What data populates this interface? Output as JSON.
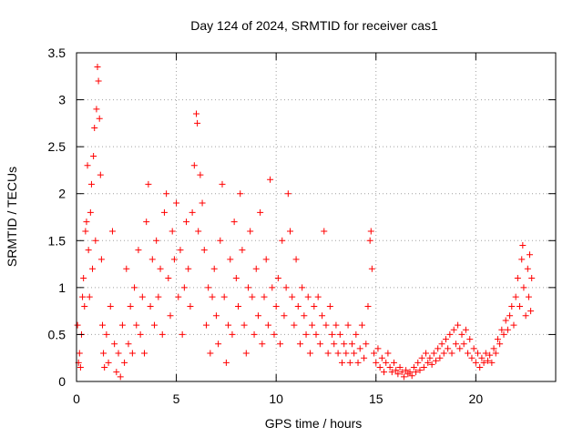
{
  "chart_data": {
    "type": "scatter",
    "title": "Day 124 of 2024, SRMTID for receiver cas1",
    "xlabel": "GPS time / hours",
    "ylabel": "SRMTID / TECUs",
    "xlim": [
      0,
      24
    ],
    "ylim": [
      0,
      3.5
    ],
    "xticks": [
      0,
      5,
      10,
      15,
      20
    ],
    "yticks": [
      0,
      0.5,
      1,
      1.5,
      2,
      2.5,
      3,
      3.5
    ],
    "xtick_labels": [
      "0",
      "5",
      "10",
      "15",
      "20"
    ],
    "ytick_labels": [
      "0",
      "0.5",
      "1",
      "1.5",
      "2",
      "2.5",
      "3",
      "3.5"
    ],
    "marker": "plus",
    "marker_color": "#ff0000",
    "grid": true,
    "series": [
      {
        "name": "SRMTID",
        "points": [
          [
            0.05,
            0.6
          ],
          [
            0.1,
            0.2
          ],
          [
            0.15,
            0.3
          ],
          [
            0.2,
            0.15
          ],
          [
            0.25,
            0.5
          ],
          [
            0.3,
            0.9
          ],
          [
            0.35,
            1.1
          ],
          [
            0.4,
            0.8
          ],
          [
            0.45,
            1.6
          ],
          [
            0.5,
            1.7
          ],
          [
            0.55,
            2.3
          ],
          [
            0.6,
            1.4
          ],
          [
            0.65,
            0.9
          ],
          [
            0.7,
            1.8
          ],
          [
            0.75,
            2.1
          ],
          [
            0.8,
            1.2
          ],
          [
            0.85,
            2.4
          ],
          [
            0.9,
            2.7
          ],
          [
            0.95,
            1.5
          ],
          [
            1.0,
            2.9
          ],
          [
            1.05,
            3.35
          ],
          [
            1.1,
            3.2
          ],
          [
            1.15,
            2.8
          ],
          [
            1.2,
            2.2
          ],
          [
            1.25,
            1.3
          ],
          [
            1.3,
            0.6
          ],
          [
            1.35,
            0.3
          ],
          [
            1.4,
            0.15
          ],
          [
            1.5,
            0.5
          ],
          [
            1.6,
            0.2
          ],
          [
            1.7,
            0.8
          ],
          [
            1.8,
            1.6
          ],
          [
            1.9,
            0.4
          ],
          [
            2.0,
            0.1
          ],
          [
            2.1,
            0.3
          ],
          [
            2.2,
            0.05
          ],
          [
            2.3,
            0.6
          ],
          [
            2.4,
            0.2
          ],
          [
            2.5,
            1.2
          ],
          [
            2.6,
            0.4
          ],
          [
            2.7,
            0.8
          ],
          [
            2.8,
            0.3
          ],
          [
            2.9,
            1.0
          ],
          [
            3.0,
            0.6
          ],
          [
            3.1,
            1.4
          ],
          [
            3.2,
            0.5
          ],
          [
            3.3,
            0.9
          ],
          [
            3.4,
            0.3
          ],
          [
            3.5,
            1.7
          ],
          [
            3.6,
            2.1
          ],
          [
            3.7,
            0.8
          ],
          [
            3.8,
            1.3
          ],
          [
            3.9,
            0.6
          ],
          [
            4.0,
            1.5
          ],
          [
            4.1,
            0.9
          ],
          [
            4.2,
            1.2
          ],
          [
            4.3,
            0.5
          ],
          [
            4.4,
            1.8
          ],
          [
            4.5,
            2.0
          ],
          [
            4.6,
            1.1
          ],
          [
            4.7,
            0.7
          ],
          [
            4.8,
            1.6
          ],
          [
            4.9,
            1.3
          ],
          [
            5.0,
            1.9
          ],
          [
            5.1,
            0.9
          ],
          [
            5.2,
            1.4
          ],
          [
            5.3,
            0.5
          ],
          [
            5.4,
            1.0
          ],
          [
            5.5,
            1.7
          ],
          [
            5.6,
            1.2
          ],
          [
            5.7,
            0.8
          ],
          [
            5.8,
            1.8
          ],
          [
            5.9,
            2.3
          ],
          [
            6.0,
            2.85
          ],
          [
            6.05,
            2.75
          ],
          [
            6.1,
            1.6
          ],
          [
            6.2,
            2.2
          ],
          [
            6.3,
            1.9
          ],
          [
            6.4,
            1.4
          ],
          [
            6.5,
            0.6
          ],
          [
            6.6,
            1.0
          ],
          [
            6.7,
            0.3
          ],
          [
            6.8,
            0.9
          ],
          [
            6.9,
            1.2
          ],
          [
            7.0,
            0.7
          ],
          [
            7.1,
            0.4
          ],
          [
            7.2,
            1.5
          ],
          [
            7.3,
            2.1
          ],
          [
            7.4,
            0.9
          ],
          [
            7.5,
            0.2
          ],
          [
            7.6,
            0.6
          ],
          [
            7.7,
            1.3
          ],
          [
            7.8,
            0.5
          ],
          [
            7.9,
            1.7
          ],
          [
            8.0,
            1.1
          ],
          [
            8.1,
            0.8
          ],
          [
            8.2,
            2.0
          ],
          [
            8.3,
            1.4
          ],
          [
            8.4,
            0.6
          ],
          [
            8.5,
            0.3
          ],
          [
            8.6,
            1.0
          ],
          [
            8.7,
            1.6
          ],
          [
            8.8,
            0.9
          ],
          [
            8.9,
            0.5
          ],
          [
            9.0,
            1.2
          ],
          [
            9.1,
            0.7
          ],
          [
            9.2,
            1.8
          ],
          [
            9.3,
            0.4
          ],
          [
            9.4,
            0.9
          ],
          [
            9.5,
            1.3
          ],
          [
            9.6,
            0.6
          ],
          [
            9.7,
            2.15
          ],
          [
            9.8,
            1.0
          ],
          [
            9.9,
            0.5
          ],
          [
            10.0,
            0.8
          ],
          [
            10.1,
            1.1
          ],
          [
            10.2,
            0.4
          ],
          [
            10.3,
            1.5
          ],
          [
            10.4,
            0.7
          ],
          [
            10.5,
            1.0
          ],
          [
            10.6,
            2.0
          ],
          [
            10.7,
            1.6
          ],
          [
            10.8,
            0.9
          ],
          [
            10.9,
            0.6
          ],
          [
            11.0,
            1.3
          ],
          [
            11.1,
            0.8
          ],
          [
            11.2,
            0.4
          ],
          [
            11.3,
            1.0
          ],
          [
            11.4,
            0.7
          ],
          [
            11.5,
            0.5
          ],
          [
            11.6,
            0.9
          ],
          [
            11.7,
            0.3
          ],
          [
            11.8,
            0.6
          ],
          [
            11.9,
            0.8
          ],
          [
            12.0,
            0.5
          ],
          [
            12.1,
            0.9
          ],
          [
            12.2,
            0.4
          ],
          [
            12.3,
            0.7
          ],
          [
            12.4,
            1.6
          ],
          [
            12.5,
            0.6
          ],
          [
            12.6,
            0.3
          ],
          [
            12.7,
            0.8
          ],
          [
            12.8,
            0.5
          ],
          [
            12.9,
            0.4
          ],
          [
            13.0,
            0.6
          ],
          [
            13.1,
            0.3
          ],
          [
            13.2,
            0.5
          ],
          [
            13.3,
            0.2
          ],
          [
            13.4,
            0.4
          ],
          [
            13.5,
            0.3
          ],
          [
            13.6,
            0.6
          ],
          [
            13.7,
            0.2
          ],
          [
            13.8,
            0.4
          ],
          [
            13.9,
            0.3
          ],
          [
            14.0,
            0.5
          ],
          [
            14.1,
            0.2
          ],
          [
            14.2,
            0.35
          ],
          [
            14.3,
            0.6
          ],
          [
            14.4,
            0.25
          ],
          [
            14.5,
            0.4
          ],
          [
            14.6,
            0.8
          ],
          [
            14.7,
            1.5
          ],
          [
            14.75,
            1.6
          ],
          [
            14.8,
            1.2
          ],
          [
            14.9,
            0.3
          ],
          [
            15.0,
            0.2
          ],
          [
            15.1,
            0.35
          ],
          [
            15.2,
            0.15
          ],
          [
            15.3,
            0.25
          ],
          [
            15.4,
            0.1
          ],
          [
            15.5,
            0.2
          ],
          [
            15.6,
            0.3
          ],
          [
            15.7,
            0.15
          ],
          [
            15.8,
            0.1
          ],
          [
            15.9,
            0.2
          ],
          [
            16.0,
            0.12
          ],
          [
            16.1,
            0.08
          ],
          [
            16.2,
            0.15
          ],
          [
            16.3,
            0.1
          ],
          [
            16.4,
            0.05
          ],
          [
            16.5,
            0.12
          ],
          [
            16.6,
            0.08
          ],
          [
            16.7,
            0.1
          ],
          [
            16.8,
            0.06
          ],
          [
            16.9,
            0.15
          ],
          [
            17.0,
            0.1
          ],
          [
            17.1,
            0.2
          ],
          [
            17.2,
            0.12
          ],
          [
            17.3,
            0.25
          ],
          [
            17.4,
            0.15
          ],
          [
            17.5,
            0.3
          ],
          [
            17.6,
            0.2
          ],
          [
            17.7,
            0.25
          ],
          [
            17.8,
            0.18
          ],
          [
            17.9,
            0.3
          ],
          [
            18.0,
            0.22
          ],
          [
            18.1,
            0.35
          ],
          [
            18.2,
            0.25
          ],
          [
            18.3,
            0.4
          ],
          [
            18.4,
            0.3
          ],
          [
            18.5,
            0.45
          ],
          [
            18.6,
            0.35
          ],
          [
            18.7,
            0.5
          ],
          [
            18.8,
            0.3
          ],
          [
            18.9,
            0.55
          ],
          [
            19.0,
            0.4
          ],
          [
            19.1,
            0.6
          ],
          [
            19.2,
            0.35
          ],
          [
            19.3,
            0.5
          ],
          [
            19.4,
            0.4
          ],
          [
            19.5,
            0.55
          ],
          [
            19.6,
            0.3
          ],
          [
            19.7,
            0.45
          ],
          [
            19.8,
            0.25
          ],
          [
            19.9,
            0.35
          ],
          [
            20.0,
            0.2
          ],
          [
            20.1,
            0.3
          ],
          [
            20.2,
            0.15
          ],
          [
            20.3,
            0.25
          ],
          [
            20.4,
            0.2
          ],
          [
            20.5,
            0.3
          ],
          [
            20.6,
            0.22
          ],
          [
            20.7,
            0.28
          ],
          [
            20.8,
            0.2
          ],
          [
            20.9,
            0.35
          ],
          [
            21.0,
            0.3
          ],
          [
            21.1,
            0.45
          ],
          [
            21.2,
            0.4
          ],
          [
            21.3,
            0.55
          ],
          [
            21.4,
            0.5
          ],
          [
            21.5,
            0.65
          ],
          [
            21.6,
            0.55
          ],
          [
            21.7,
            0.7
          ],
          [
            21.8,
            0.8
          ],
          [
            21.9,
            0.6
          ],
          [
            22.0,
            0.9
          ],
          [
            22.1,
            1.1
          ],
          [
            22.2,
            0.8
          ],
          [
            22.3,
            1.3
          ],
          [
            22.35,
            1.45
          ],
          [
            22.4,
            1.0
          ],
          [
            22.5,
            0.7
          ],
          [
            22.6,
            1.2
          ],
          [
            22.65,
            0.9
          ],
          [
            22.7,
            1.35
          ],
          [
            22.75,
            0.75
          ],
          [
            22.8,
            1.1
          ]
        ]
      }
    ]
  }
}
